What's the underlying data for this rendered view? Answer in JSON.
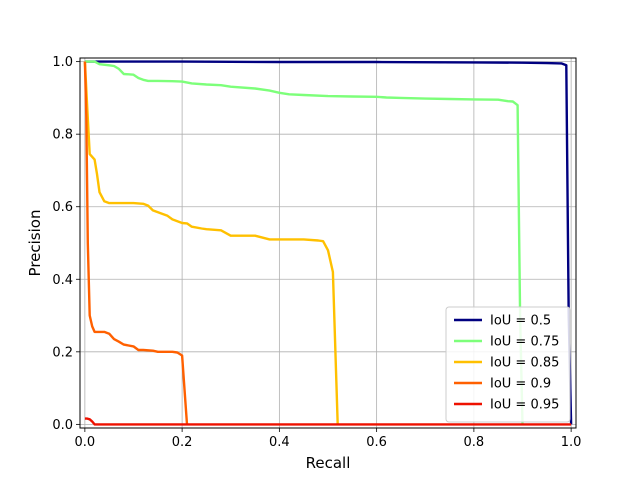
{
  "chart_data": {
    "type": "line",
    "title": "",
    "xlabel": "Recall",
    "ylabel": "Precision",
    "xlim": [
      -0.01,
      1.01
    ],
    "ylim": [
      -0.01,
      1.01
    ],
    "xticks": [
      0.0,
      0.2,
      0.4,
      0.6,
      0.8,
      1.0
    ],
    "xtick_labels": [
      "0.0",
      "0.2",
      "0.4",
      "0.6",
      "0.8",
      "1.0"
    ],
    "yticks": [
      0.0,
      0.2,
      0.4,
      0.6,
      0.8,
      1.0
    ],
    "ytick_labels": [
      "0.0",
      "0.2",
      "0.4",
      "0.6",
      "0.8",
      "1.0"
    ],
    "grid": true,
    "legend_position": "lower right",
    "series": [
      {
        "name": "IoU = 0.5",
        "color": "#000080",
        "x": [
          0.0,
          0.02,
          0.2,
          0.4,
          0.6,
          0.8,
          0.9,
          0.95,
          0.98,
          0.99,
          0.995,
          1.0
        ],
        "y": [
          1.0,
          1.0,
          1.0,
          0.999,
          0.999,
          0.998,
          0.997,
          0.996,
          0.995,
          0.99,
          0.3,
          0.0
        ]
      },
      {
        "name": "IoU = 0.75",
        "color": "#7dff7a",
        "x": [
          0.0,
          0.01,
          0.02,
          0.03,
          0.05,
          0.06,
          0.07,
          0.08,
          0.1,
          0.11,
          0.12,
          0.13,
          0.15,
          0.18,
          0.2,
          0.22,
          0.25,
          0.28,
          0.3,
          0.35,
          0.38,
          0.4,
          0.42,
          0.45,
          0.5,
          0.55,
          0.6,
          0.62,
          0.65,
          0.7,
          0.75,
          0.8,
          0.85,
          0.87,
          0.88,
          0.885,
          0.89,
          0.895,
          0.9
        ],
        "y": [
          1.0,
          1.0,
          1.0,
          0.993,
          0.99,
          0.988,
          0.98,
          0.966,
          0.964,
          0.955,
          0.95,
          0.947,
          0.947,
          0.946,
          0.945,
          0.94,
          0.937,
          0.935,
          0.931,
          0.926,
          0.92,
          0.914,
          0.91,
          0.908,
          0.905,
          0.904,
          0.903,
          0.901,
          0.9,
          0.898,
          0.897,
          0.896,
          0.895,
          0.891,
          0.89,
          0.885,
          0.88,
          0.3,
          0.0
        ]
      },
      {
        "name": "IoU = 0.85",
        "color": "#ffc000",
        "x": [
          0.0,
          0.005,
          0.01,
          0.02,
          0.025,
          0.03,
          0.04,
          0.05,
          0.07,
          0.1,
          0.12,
          0.13,
          0.14,
          0.16,
          0.17,
          0.18,
          0.2,
          0.21,
          0.22,
          0.24,
          0.25,
          0.28,
          0.3,
          0.35,
          0.38,
          0.4,
          0.45,
          0.48,
          0.49,
          0.5,
          0.51,
          0.52
        ],
        "y": [
          1.0,
          0.87,
          0.745,
          0.73,
          0.69,
          0.64,
          0.615,
          0.61,
          0.61,
          0.61,
          0.608,
          0.603,
          0.59,
          0.58,
          0.575,
          0.565,
          0.555,
          0.554,
          0.545,
          0.54,
          0.538,
          0.535,
          0.52,
          0.52,
          0.51,
          0.51,
          0.51,
          0.507,
          0.505,
          0.48,
          0.42,
          0.0
        ]
      },
      {
        "name": "IoU = 0.9",
        "color": "#ff6000",
        "x": [
          0.0,
          0.003,
          0.006,
          0.01,
          0.015,
          0.02,
          0.04,
          0.05,
          0.06,
          0.07,
          0.08,
          0.1,
          0.11,
          0.12,
          0.14,
          0.15,
          0.17,
          0.18,
          0.19,
          0.2,
          0.21
        ],
        "y": [
          1.0,
          0.85,
          0.5,
          0.3,
          0.27,
          0.255,
          0.255,
          0.25,
          0.235,
          0.228,
          0.22,
          0.215,
          0.205,
          0.205,
          0.203,
          0.2,
          0.2,
          0.2,
          0.198,
          0.19,
          0.0
        ]
      },
      {
        "name": "IoU = 0.95",
        "color": "#ee1100",
        "x": [
          0.0,
          0.005,
          0.01,
          0.015,
          0.02,
          0.1,
          0.3,
          0.5,
          0.7,
          0.9,
          1.0
        ],
        "y": [
          0.016,
          0.016,
          0.014,
          0.008,
          0.0,
          0.0,
          0.0,
          0.0,
          0.0,
          0.0,
          0.0
        ]
      }
    ]
  }
}
